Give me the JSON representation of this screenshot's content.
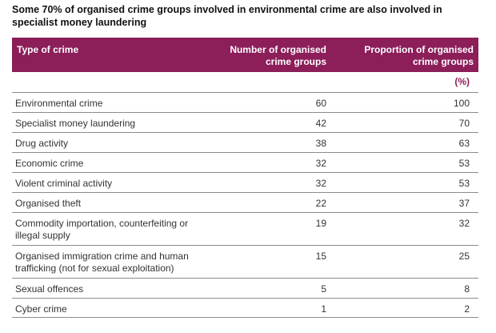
{
  "title": "Some 70% of organised crime groups involved in environmental crime are also involved in specialist money laundering",
  "header": {
    "col1": "Type of crime",
    "col2": "Number of organised crime groups",
    "col3": "Proportion of organised crime groups",
    "unit": "(%)"
  },
  "rows": [
    {
      "type": "Environmental crime",
      "count": "60",
      "pct": "100"
    },
    {
      "type": "Specialist money laundering",
      "count": "42",
      "pct": "70"
    },
    {
      "type": "Drug activity",
      "count": "38",
      "pct": "63"
    },
    {
      "type": "Economic crime",
      "count": "32",
      "pct": "53"
    },
    {
      "type": "Violent criminal activity",
      "count": "32",
      "pct": "53"
    },
    {
      "type": "Organised theft",
      "count": "22",
      "pct": "37"
    },
    {
      "type": "Commodity importation, counterfeiting or illegal supply",
      "count": "19",
      "pct": "32"
    },
    {
      "type": "Organised immigration crime and human trafficking (not for sexual exploitation)",
      "count": "15",
      "pct": "25"
    },
    {
      "type": "Sexual offences",
      "count": "5",
      "pct": "8"
    },
    {
      "type": "Cyber crime",
      "count": "1",
      "pct": "2"
    }
  ],
  "colors": {
    "header_bg": "#8c1e5a",
    "rule": "#8c8c8c"
  }
}
